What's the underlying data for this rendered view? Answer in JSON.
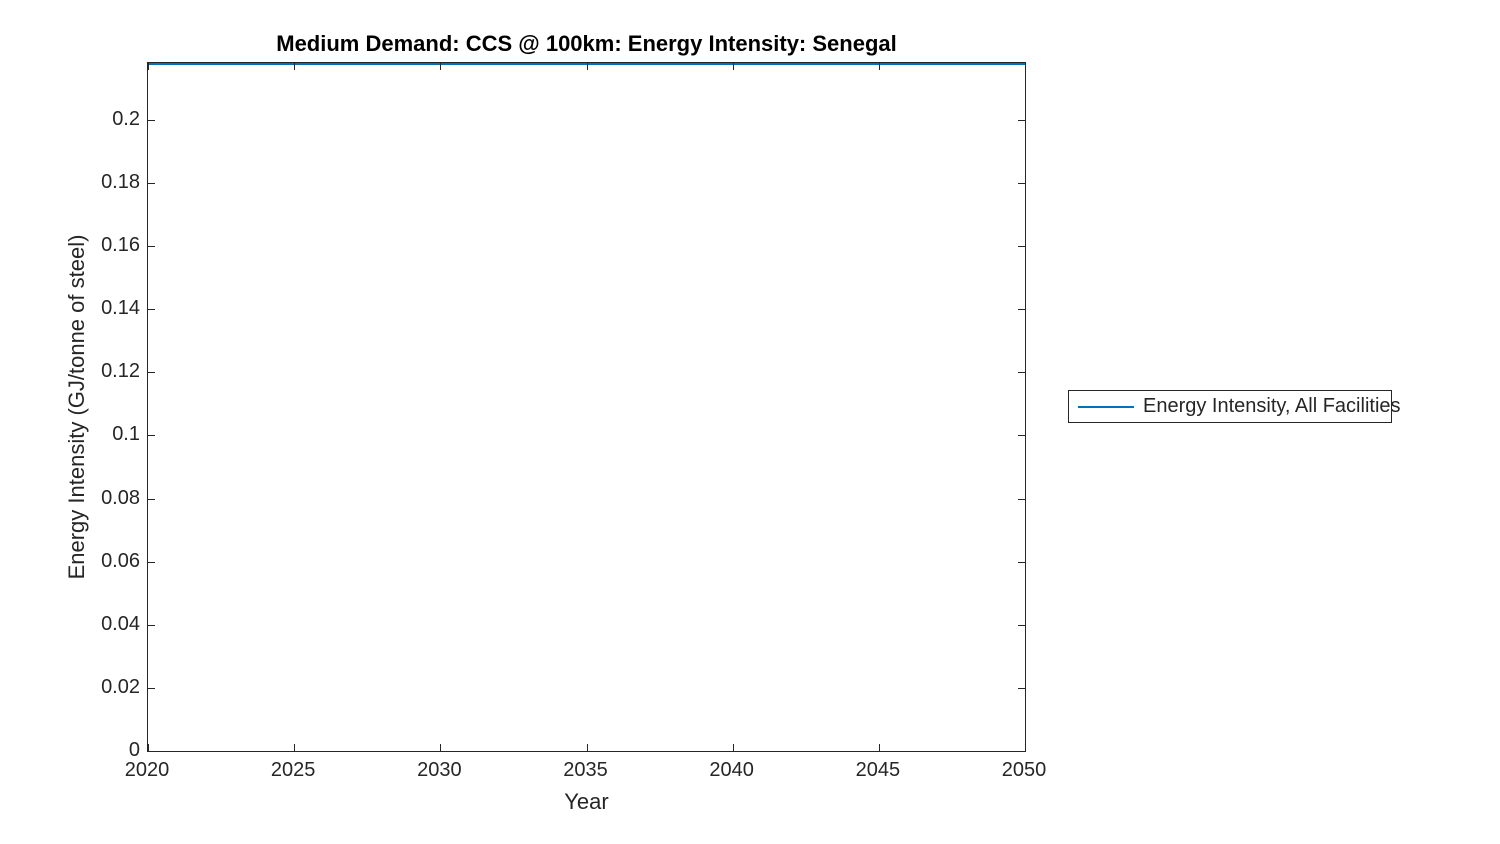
{
  "figure": {
    "title": "Medium Demand: CCS @ 100km: Energy Intensity: Senegal",
    "xlabel": "Year",
    "ylabel": "Energy Intensity (GJ/tonne of steel)",
    "legend": {
      "label": "Energy Intensity, All Facilities"
    }
  },
  "chart_data": {
    "type": "line",
    "title": "Medium Demand: CCS @ 100km: Energy Intensity: Senegal",
    "xlabel": "Year",
    "ylabel": "Energy Intensity (GJ/tonne of steel)",
    "x": [
      2020,
      2025,
      2030,
      2035,
      2040,
      2045,
      2050
    ],
    "series": [
      {
        "name": "Energy Intensity, All Facilities",
        "color": "#0072BD",
        "values": [
          0.218,
          0.218,
          0.218,
          0.218,
          0.218,
          0.218,
          0.218
        ]
      }
    ],
    "xlim": [
      2020,
      2050
    ],
    "ylim": [
      0,
      0.218
    ],
    "xticks": [
      2020,
      2025,
      2030,
      2035,
      2040,
      2045,
      2050
    ],
    "xtick_labels": [
      "2020",
      "2025",
      "2030",
      "2035",
      "2040",
      "2045",
      "2050"
    ],
    "yticks": [
      0,
      0.02,
      0.04,
      0.06,
      0.08,
      0.1,
      0.12,
      0.14,
      0.16,
      0.18,
      0.2
    ],
    "ytick_labels": [
      "0",
      "0.02",
      "0.04",
      "0.06",
      "0.08",
      "0.1",
      "0.12",
      "0.14",
      "0.16",
      "0.18",
      "0.2"
    ],
    "grid": false,
    "legend_position": "outside-right",
    "box": true,
    "tick_direction": "in"
  },
  "colors": {
    "line": "#0072BD",
    "axis": "#262626",
    "text": "#262626",
    "background": "#ffffff"
  }
}
